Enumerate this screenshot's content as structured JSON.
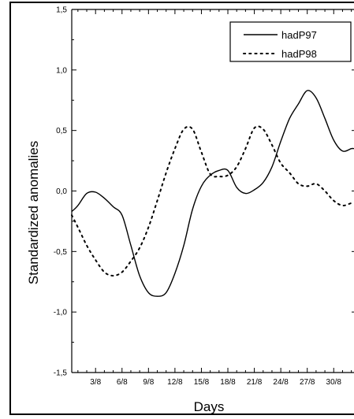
{
  "chart_data": {
    "type": "line",
    "title": "",
    "xlabel": "Days",
    "ylabel": "Standardized anomalies",
    "xlim": [
      0.3,
      32.3
    ],
    "ylim": [
      -1.5,
      1.5
    ],
    "x_tick_labels": [
      {
        "x": 3,
        "label": "3/8"
      },
      {
        "x": 6,
        "label": "6/8"
      },
      {
        "x": 9,
        "label": "9/8"
      },
      {
        "x": 12,
        "label": "12/8"
      },
      {
        "x": 15,
        "label": "15/8"
      },
      {
        "x": 18,
        "label": "18/8"
      },
      {
        "x": 21,
        "label": "21/8"
      },
      {
        "x": 24,
        "label": "24/8"
      },
      {
        "x": 27,
        "label": "27/8"
      },
      {
        "x": 30,
        "label": "30/8"
      }
    ],
    "y_ticks": [
      {
        "y": -1.5,
        "label": "-1,5"
      },
      {
        "y": -1.0,
        "label": "-1,0"
      },
      {
        "y": -0.5,
        "label": "-0,5"
      },
      {
        "y": 0.0,
        "label": "0,0"
      },
      {
        "y": 0.5,
        "label": "0,5"
      },
      {
        "y": 1.0,
        "label": "1,0"
      },
      {
        "y": 1.5,
        "label": "1,5"
      }
    ],
    "series": [
      {
        "name": "hadP97",
        "style": "solid",
        "x": [
          0.3,
          1,
          2,
          3,
          4,
          5,
          6,
          7,
          8,
          9,
          10,
          11,
          12,
          13,
          14,
          15,
          16,
          17,
          18,
          19,
          20,
          21,
          22,
          23,
          24,
          25,
          26,
          27,
          28,
          29,
          30,
          31,
          32,
          32.3
        ],
        "values": [
          -0.17,
          -0.12,
          -0.02,
          -0.01,
          -0.06,
          -0.13,
          -0.2,
          -0.45,
          -0.7,
          -0.84,
          -0.87,
          -0.84,
          -0.68,
          -0.45,
          -0.15,
          0.04,
          0.13,
          0.17,
          0.17,
          0.03,
          -0.02,
          0.01,
          0.07,
          0.2,
          0.41,
          0.6,
          0.72,
          0.83,
          0.77,
          0.6,
          0.42,
          0.33,
          0.35,
          0.35
        ]
      },
      {
        "name": "hadP98",
        "style": "dotted",
        "x": [
          0.3,
          1,
          2,
          3,
          4,
          5,
          6,
          7,
          8,
          9,
          10,
          11,
          12,
          13,
          14,
          15,
          16,
          17,
          18,
          19,
          20,
          21,
          22,
          23,
          24,
          25,
          26,
          27,
          28,
          29,
          30,
          31,
          32,
          32.3
        ],
        "values": [
          -0.2,
          -0.3,
          -0.45,
          -0.57,
          -0.67,
          -0.7,
          -0.67,
          -0.58,
          -0.47,
          -0.3,
          -0.08,
          0.15,
          0.35,
          0.51,
          0.51,
          0.32,
          0.14,
          0.12,
          0.13,
          0.2,
          0.35,
          0.52,
          0.51,
          0.38,
          0.23,
          0.15,
          0.06,
          0.04,
          0.06,
          0.0,
          -0.08,
          -0.12,
          -0.1,
          -0.1
        ]
      }
    ],
    "legend": {
      "position": "top-right"
    },
    "grid": false
  }
}
